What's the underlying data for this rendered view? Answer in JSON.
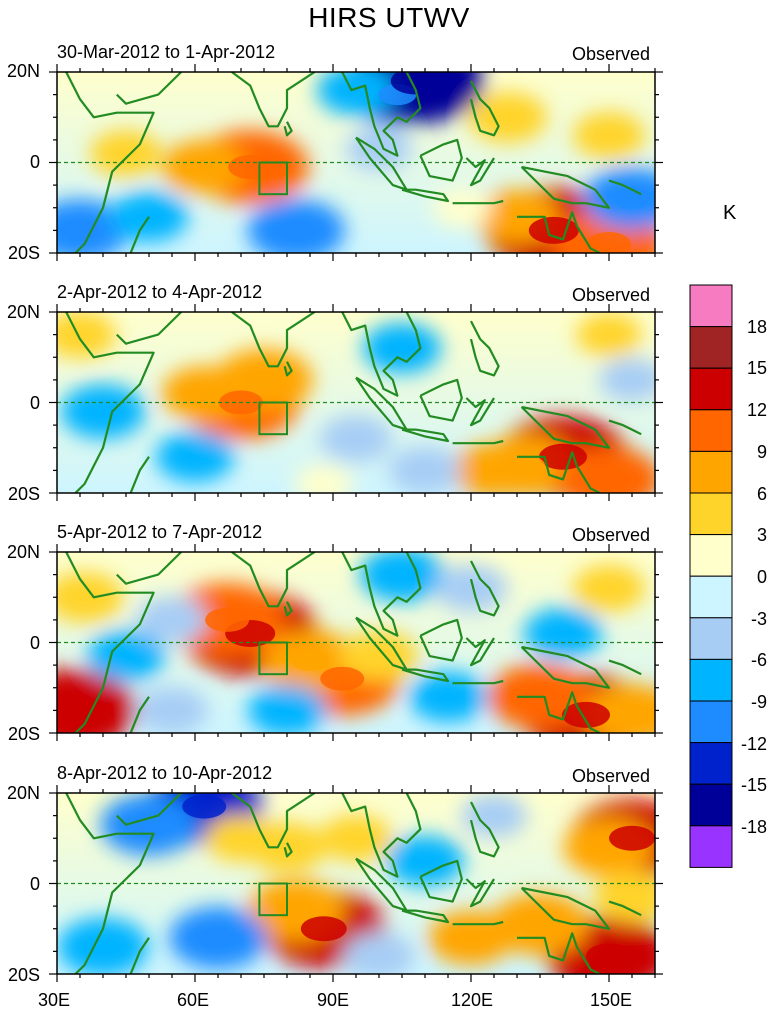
{
  "title": "HIRS UTWV",
  "panels": [
    {
      "date_range": "30-Mar-2012 to 1-Apr-2012",
      "label": "Observed"
    },
    {
      "date_range": "2-Apr-2012 to 4-Apr-2012",
      "label": "Observed"
    },
    {
      "date_range": "5-Apr-2012 to 7-Apr-2012",
      "label": "Observed"
    },
    {
      "date_range": "8-Apr-2012 to 10-Apr-2012",
      "label": "Observed"
    }
  ],
  "lat_labels": [
    "20N",
    "0",
    "20S"
  ],
  "lon_labels": [
    "30E",
    "60E",
    "90E",
    "120E",
    "150E"
  ],
  "colorbar": {
    "unit": "K",
    "labels": [
      "18",
      "15",
      "12",
      "9",
      "6",
      "3",
      "0",
      "-3",
      "-6",
      "-9",
      "-12",
      "-15",
      "-18"
    ],
    "colors": [
      "#f77bc1",
      "#a12424",
      "#cc0000",
      "#ff6600",
      "#ffa500",
      "#ffd42a",
      "#ffffcc",
      "#cdf5ff",
      "#a7cdf5",
      "#00b4ff",
      "#1e8cff",
      "#0022cc",
      "#000099",
      "#9933ff"
    ]
  },
  "map": {
    "lon_range": [
      30,
      160
    ],
    "lat_range": [
      -20,
      20
    ],
    "box_region": "74E-80E, 0-7S",
    "land_color": "#228b22"
  },
  "anomalies": [
    [
      {
        "lon": 72,
        "lat": -1,
        "value": 12
      },
      {
        "lon": 62,
        "lat": -1,
        "value": 7
      },
      {
        "lon": 45,
        "lat": 2,
        "value": 5
      },
      {
        "lon": 138,
        "lat": -15,
        "value": 15
      },
      {
        "lon": 150,
        "lat": -18,
        "value": 12
      },
      {
        "lon": 130,
        "lat": -12,
        "value": 7
      },
      {
        "lon": 104,
        "lat": 15,
        "value": -9
      },
      {
        "lon": 108,
        "lat": 18,
        "value": -15
      },
      {
        "lon": 95,
        "lat": 16,
        "value": -6
      },
      {
        "lon": 35,
        "lat": -15,
        "value": -9
      },
      {
        "lon": 50,
        "lat": -12,
        "value": -6
      },
      {
        "lon": 82,
        "lat": -15,
        "value": -9
      },
      {
        "lon": 155,
        "lat": -8,
        "value": -9
      },
      {
        "lon": 100,
        "lat": 3,
        "value": -4
      },
      {
        "lon": 150,
        "lat": 6,
        "value": 5
      },
      {
        "lon": 128,
        "lat": 10,
        "value": 6
      },
      {
        "lon": 118,
        "lat": -10,
        "value": 3
      }
    ],
    [
      {
        "lon": 70,
        "lat": 0,
        "value": 12
      },
      {
        "lon": 75,
        "lat": 5,
        "value": 9
      },
      {
        "lon": 62,
        "lat": 2,
        "value": 7
      },
      {
        "lon": 140,
        "lat": -12,
        "value": 14
      },
      {
        "lon": 132,
        "lat": -14,
        "value": 9
      },
      {
        "lon": 150,
        "lat": -17,
        "value": 10
      },
      {
        "lon": 125,
        "lat": -15,
        "value": 7
      },
      {
        "lon": 40,
        "lat": -2,
        "value": -7
      },
      {
        "lon": 60,
        "lat": -12,
        "value": -6
      },
      {
        "lon": 105,
        "lat": 12,
        "value": -6
      },
      {
        "lon": 95,
        "lat": -8,
        "value": -5
      },
      {
        "lon": 110,
        "lat": -15,
        "value": -5
      },
      {
        "lon": 35,
        "lat": 15,
        "value": 5
      },
      {
        "lon": 150,
        "lat": 15,
        "value": 4
      },
      {
        "lon": 155,
        "lat": 5,
        "value": -4
      },
      {
        "lon": 88,
        "lat": -18,
        "value": 3
      }
    ],
    [
      {
        "lon": 72,
        "lat": 2,
        "value": 15
      },
      {
        "lon": 67,
        "lat": 5,
        "value": 12
      },
      {
        "lon": 92,
        "lat": -8,
        "value": 12
      },
      {
        "lon": 85,
        "lat": -4,
        "value": 9
      },
      {
        "lon": 100,
        "lat": -3,
        "value": 6
      },
      {
        "lon": 145,
        "lat": -16,
        "value": 14
      },
      {
        "lon": 135,
        "lat": -12,
        "value": 10
      },
      {
        "lon": 155,
        "lat": -16,
        "value": 9
      },
      {
        "lon": 33,
        "lat": -15,
        "value": 14
      },
      {
        "lon": 36,
        "lat": 10,
        "value": 6
      },
      {
        "lon": 45,
        "lat": -3,
        "value": -6
      },
      {
        "lon": 55,
        "lat": 5,
        "value": -5
      },
      {
        "lon": 105,
        "lat": 15,
        "value": -7
      },
      {
        "lon": 80,
        "lat": -15,
        "value": -6
      },
      {
        "lon": 115,
        "lat": -12,
        "value": -6
      },
      {
        "lon": 120,
        "lat": 12,
        "value": -5
      },
      {
        "lon": 150,
        "lat": 12,
        "value": 5
      },
      {
        "lon": 140,
        "lat": 2,
        "value": -6
      },
      {
        "lon": 55,
        "lat": -15,
        "value": -5
      }
    ],
    [
      {
        "lon": 62,
        "lat": 17,
        "value": -12
      },
      {
        "lon": 50,
        "lat": 13,
        "value": -9
      },
      {
        "lon": 88,
        "lat": -10,
        "value": 13
      },
      {
        "lon": 82,
        "lat": -6,
        "value": 9
      },
      {
        "lon": 150,
        "lat": -16,
        "value": 13
      },
      {
        "lon": 135,
        "lat": -9,
        "value": 9
      },
      {
        "lon": 120,
        "lat": -12,
        "value": 7
      },
      {
        "lon": 155,
        "lat": 10,
        "value": 13
      },
      {
        "lon": 150,
        "lat": 8,
        "value": 8
      },
      {
        "lon": 80,
        "lat": 8,
        "value": 6
      },
      {
        "lon": 95,
        "lat": 10,
        "value": 5
      },
      {
        "lon": 70,
        "lat": 10,
        "value": 5
      },
      {
        "lon": 65,
        "lat": -12,
        "value": -9
      },
      {
        "lon": 40,
        "lat": -14,
        "value": -8
      },
      {
        "lon": 110,
        "lat": 5,
        "value": -6
      },
      {
        "lon": 100,
        "lat": -16,
        "value": -5
      },
      {
        "lon": 155,
        "lat": -3,
        "value": 6
      },
      {
        "lon": 125,
        "lat": 15,
        "value": -4
      }
    ]
  ]
}
